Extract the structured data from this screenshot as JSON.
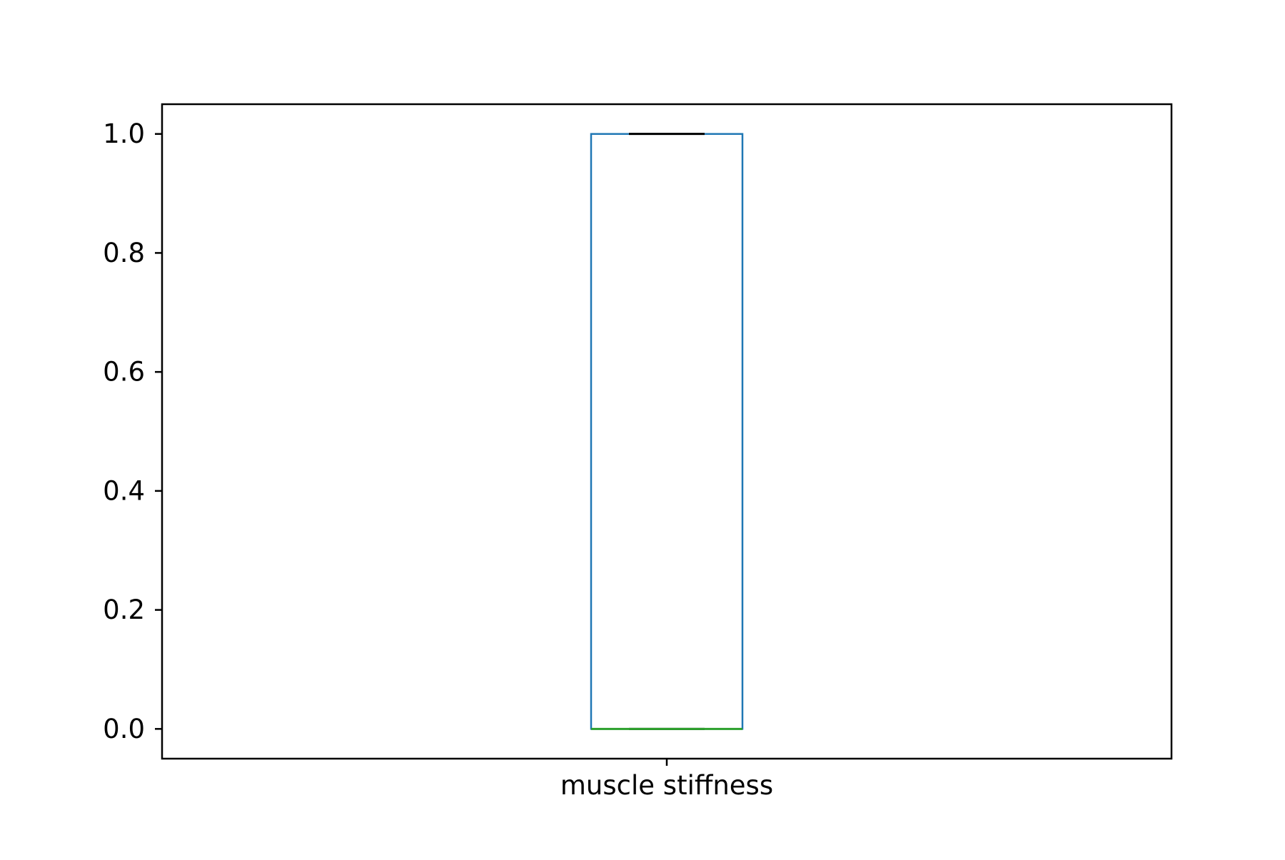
{
  "chart_data": {
    "type": "box",
    "title": "",
    "xlabel": "",
    "ylabel": "",
    "categories": [
      "muscle stiffness"
    ],
    "ylim": [
      -0.05,
      1.05
    ],
    "yticks": [
      0.0,
      0.2,
      0.4,
      0.6,
      0.8,
      1.0
    ],
    "ytick_labels": [
      "0.0",
      "0.2",
      "0.4",
      "0.6",
      "0.8",
      "1.0"
    ],
    "boxes": [
      {
        "category": "muscle stiffness",
        "whisker_low": 0.0,
        "q1": 0.0,
        "median": 0.0,
        "q3": 1.0,
        "whisker_high": 1.0
      }
    ],
    "grid": false,
    "colors": {
      "box": "#1f77b4",
      "median": "#2ca02c",
      "whisker": "#000000",
      "axes": "#000000"
    }
  }
}
